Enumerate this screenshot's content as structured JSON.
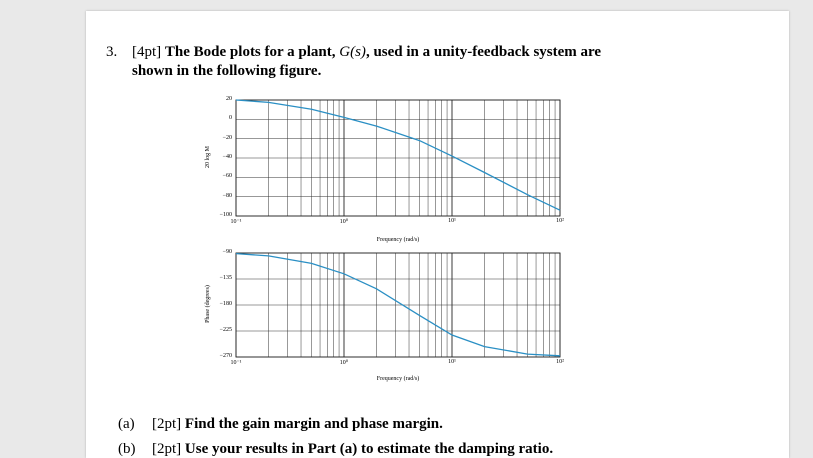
{
  "question": {
    "number": "3.",
    "points": "[4pt]",
    "line1_a": "The Bode plots for a plant, ",
    "line1_math": "G(s)",
    "line1_b": ", used in a unity-feedback system are",
    "line2": "shown in the following figure."
  },
  "parts": [
    {
      "label": "(a)",
      "points": "[2pt]",
      "text": "Find the gain margin and phase margin."
    },
    {
      "label": "(b)",
      "points": "[2pt]",
      "text": "Use your results in Part (a) to estimate the damping ratio."
    }
  ],
  "chart_data": [
    {
      "type": "line",
      "ylabel": "20 log M",
      "xlabel": "Frequency (rad/s)",
      "x_scale": "log",
      "xlim": [
        0.1,
        100
      ],
      "ylim": [
        -100,
        20
      ],
      "yticks": [
        "20",
        "0",
        "-20",
        "-40",
        "-60",
        "-80",
        "-100"
      ],
      "xticks": [
        "10^-1",
        "10^0",
        "10^1",
        "10^2"
      ],
      "grid": true,
      "series": [
        {
          "x": [
            0.1,
            0.2,
            0.5,
            1,
            2,
            5,
            10,
            20,
            50,
            100
          ],
          "values": [
            20,
            17.5,
            10.5,
            2,
            -7,
            -22,
            -38,
            -55,
            -78,
            -94
          ]
        }
      ],
      "color": "#2a8fc4"
    },
    {
      "type": "line",
      "ylabel": "Phase (degrees)",
      "xlabel": "Frequency (rad/s)",
      "x_scale": "log",
      "xlim": [
        0.1,
        100
      ],
      "ylim": [
        -270,
        -90
      ],
      "yticks": [
        "-90",
        "-135",
        "-180",
        "-225",
        "-270"
      ],
      "xticks": [
        "10^-1",
        "10^0",
        "10^1",
        "10^2"
      ],
      "grid": true,
      "series": [
        {
          "x": [
            0.1,
            0.2,
            0.5,
            1,
            2,
            5,
            10,
            20,
            50,
            100
          ],
          "values": [
            -91,
            -95,
            -108,
            -126,
            -152,
            -198,
            -232,
            -252,
            -265,
            -268
          ]
        }
      ],
      "color": "#2a8fc4"
    }
  ]
}
